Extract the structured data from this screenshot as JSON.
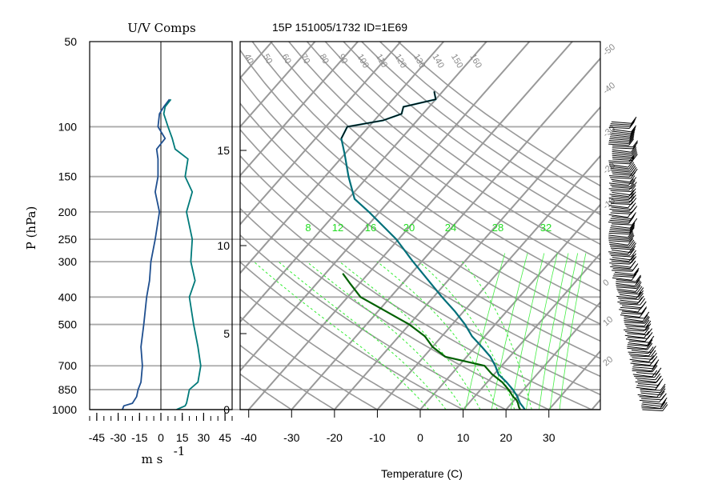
{
  "chart_data": [
    {
      "type": "line",
      "panel": "wind-components",
      "title": "U/V Comps",
      "xlabel_units": "m s",
      "xlabel_exp": "-1",
      "ylabel": "P (hPa)",
      "xlim": [
        -50,
        50
      ],
      "x_ticks": [
        "-45",
        "-30",
        "-15",
        "0",
        "15",
        "30",
        "45"
      ],
      "pressure_ticks": [
        {
          "p": 50,
          "label": "50"
        },
        {
          "p": 100,
          "label": "100"
        },
        {
          "p": 150,
          "label": "150"
        },
        {
          "p": 200,
          "label": "200"
        },
        {
          "p": 250,
          "label": "250"
        },
        {
          "p": 300,
          "label": "300"
        },
        {
          "p": 400,
          "label": "400"
        },
        {
          "p": 500,
          "label": "500"
        },
        {
          "p": 700,
          "label": "700"
        },
        {
          "p": 850,
          "label": "850"
        },
        {
          "p": 1000,
          "label": "1000"
        }
      ],
      "series": [
        {
          "key": "u",
          "color": "#1f4f8f",
          "p": [
            1000,
            970,
            950,
            900,
            850,
            800,
            700,
            600,
            500,
            400,
            350,
            300,
            250,
            200,
            170,
            150,
            130,
            120,
            110,
            100,
            90,
            85,
            80
          ],
          "values": [
            -27,
            -26,
            -20,
            -17,
            -16,
            -14,
            -13,
            -14,
            -12,
            -10,
            -8,
            -7,
            -4,
            -1,
            -4,
            -2,
            -2,
            -3,
            3,
            -2,
            -1,
            2,
            6
          ]
        },
        {
          "key": "v",
          "color": "#007a7a",
          "p": [
            1000,
            970,
            950,
            900,
            850,
            800,
            700,
            600,
            500,
            400,
            350,
            300,
            250,
            200,
            170,
            150,
            130,
            120,
            110,
            100,
            90,
            85,
            80
          ],
          "values": [
            11,
            17,
            18,
            19,
            20,
            26,
            28,
            26,
            23,
            20,
            24,
            21,
            22,
            18,
            22,
            17,
            19,
            10,
            8,
            5,
            2,
            3,
            7
          ]
        }
      ]
    },
    {
      "type": "line",
      "panel": "skew-t",
      "title": "15P 151005/1732 ID=1E69",
      "xlabel": "Temperature (C)",
      "xlim": [
        -42,
        42
      ],
      "x_ticks": [
        "-40",
        "-30",
        "-20",
        "-10",
        "0",
        "10",
        "20",
        "30"
      ],
      "height_ticks": [
        "0",
        "5",
        "10",
        "15"
      ],
      "mixing_ratio_labels": [
        "8",
        "12",
        "16",
        "20",
        "24",
        "28",
        "32"
      ],
      "theta_labels": [
        "40",
        "50",
        "60",
        "70",
        "80",
        "90",
        "100",
        "110",
        "120",
        "130",
        "140",
        "150",
        "160"
      ],
      "temperature_isopleth_labels": [
        "-50",
        "-40",
        "-30",
        "-20",
        "-10",
        "0",
        "10",
        "20",
        "30"
      ],
      "series": [
        {
          "key": "temperature",
          "color": "#00707a",
          "p": [
            1000,
            980,
            950,
            925,
            900,
            850,
            800,
            750,
            700,
            650,
            600,
            550,
            500,
            450,
            400,
            350,
            300,
            250,
            200,
            180,
            150,
            125,
            110,
            100,
            95,
            90,
            85,
            80,
            75
          ],
          "values": [
            24.4,
            23.5,
            22.0,
            21.0,
            20.0,
            17.5,
            14.5,
            11.0,
            8.5,
            5.5,
            1.5,
            -3.0,
            -7.0,
            -12.0,
            -18.0,
            -24.5,
            -32.0,
            -40.5,
            -52.5,
            -58.5,
            -64.5,
            -70.0,
            -74.0,
            -75.0,
            -68.0,
            -65.0,
            -66.0,
            -60.0,
            -62.0
          ]
        },
        {
          "key": "dewpoint",
          "color": "#006000",
          "p": [
            1000,
            980,
            950,
            925,
            900,
            850,
            800,
            750,
            700,
            650,
            600,
            550,
            500,
            450,
            400,
            360,
            330
          ],
          "values": [
            23.3,
            22.5,
            21.5,
            20.5,
            19.0,
            16.5,
            13.5,
            9.5,
            6.0,
            -5.0,
            -10.0,
            -14.0,
            -20.0,
            -28.0,
            -37.0,
            -42.0,
            -46.0
          ]
        }
      ]
    }
  ]
}
